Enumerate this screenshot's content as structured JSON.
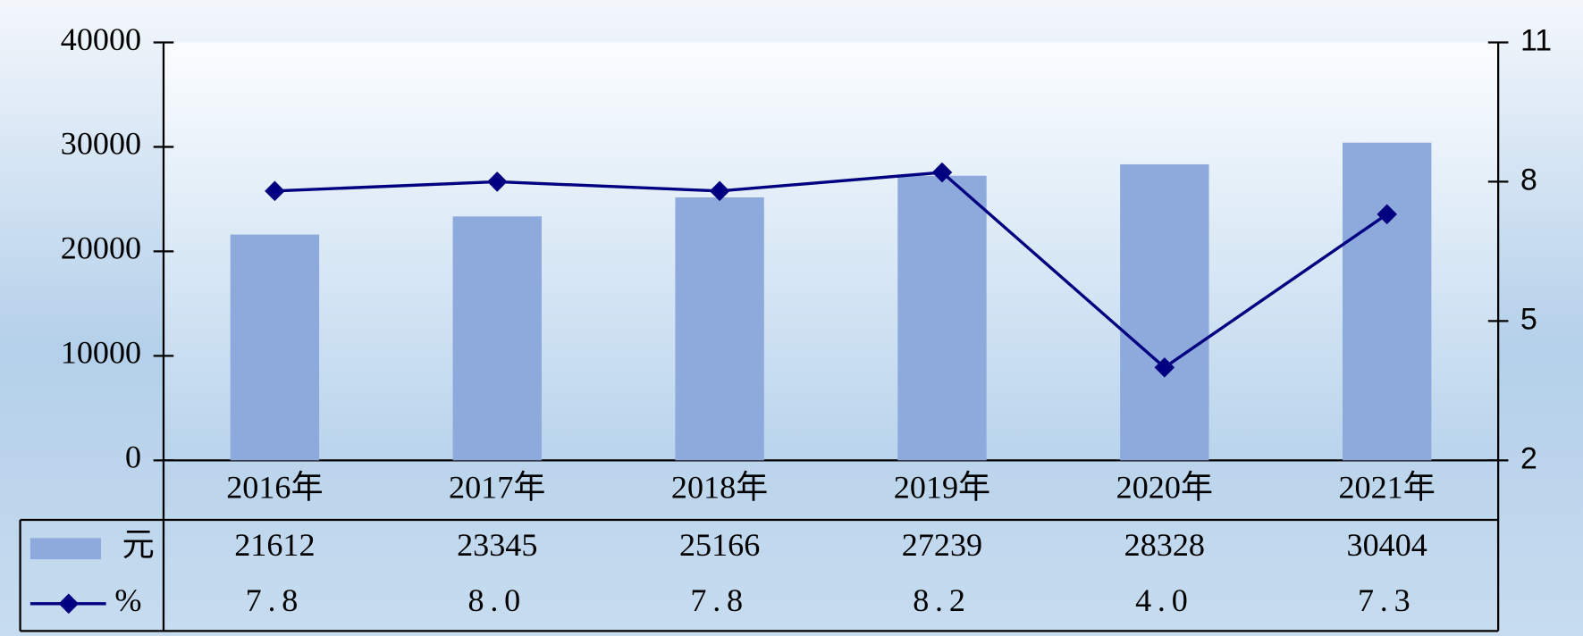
{
  "chart_data": {
    "type": "bar",
    "categories": [
      "2016年",
      "2017年",
      "2018年",
      "2019年",
      "2020年",
      "2021年"
    ],
    "series": [
      {
        "name": "元",
        "type": "bar",
        "color": "#8eaadc",
        "values": [
          21612,
          23345,
          25166,
          27239,
          28328,
          30404
        ]
      },
      {
        "name": "%",
        "type": "line",
        "axis": "y2",
        "color": "#000080",
        "values": [
          7.8,
          8.0,
          7.8,
          8.2,
          4.0,
          7.3
        ],
        "value_labels": [
          "7.8",
          "8.0",
          "7.8",
          "8.2",
          "4.0",
          "7.3"
        ]
      }
    ],
    "ylim": [
      0,
      40000
    ],
    "yticks": [
      0,
      10000,
      20000,
      30000,
      40000
    ],
    "y2lim": [
      2,
      11
    ],
    "y2ticks": [
      2,
      5,
      8,
      11
    ],
    "grid": false
  }
}
